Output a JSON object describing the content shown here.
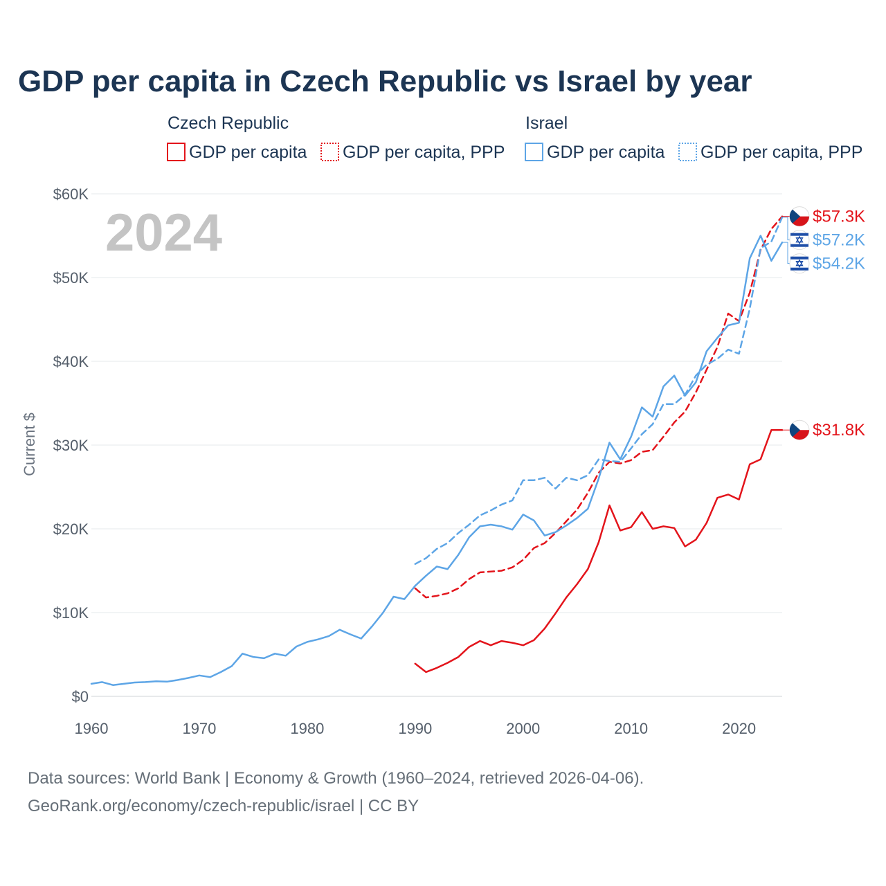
{
  "chart_data": {
    "type": "line",
    "title": "GDP per capita in Czech Republic vs Israel by year",
    "ylabel": "Current $",
    "xlabel": "",
    "xlim": [
      1960,
      2024
    ],
    "ylim": [
      0,
      60000
    ],
    "x_ticks": [
      1960,
      1970,
      1980,
      1990,
      2000,
      2010,
      2020
    ],
    "x_tick_labels": [
      "1960",
      "1970",
      "1980",
      "1990",
      "2000",
      "2010",
      "2020"
    ],
    "y_ticks": [
      0,
      10000,
      20000,
      30000,
      40000,
      50000,
      60000
    ],
    "y_tick_labels": [
      "$0",
      "$10K",
      "$20K",
      "$30K",
      "$40K",
      "$50K",
      "$60K"
    ],
    "grid": "horizontal",
    "year_watermark": "2024",
    "legend_groups": [
      {
        "country": "Czech Republic",
        "color": "#e3141b",
        "entries": [
          "GDP per capita",
          "GDP per capita, PPP"
        ]
      },
      {
        "country": "Israel",
        "color": "#5da5e6",
        "entries": [
          "GDP per capita",
          "GDP per capita, PPP"
        ]
      }
    ],
    "series": [
      {
        "name": "Czech Republic GDP per capita",
        "country": "Czech Republic",
        "color": "#e3141b",
        "dashed": false,
        "x": [
          1990,
          1991,
          1992,
          1993,
          1994,
          1995,
          1996,
          1997,
          1998,
          1999,
          2000,
          2001,
          2002,
          2003,
          2004,
          2005,
          2006,
          2007,
          2008,
          2009,
          2010,
          2011,
          2012,
          2013,
          2014,
          2015,
          2016,
          2017,
          2018,
          2019,
          2020,
          2021,
          2022,
          2023,
          2024
        ],
        "values": [
          3900,
          2900,
          3400,
          4000,
          4700,
          5900,
          6600,
          6100,
          6600,
          6400,
          6100,
          6700,
          8100,
          9900,
          11800,
          13400,
          15200,
          18400,
          22800,
          19800,
          20200,
          22000,
          20000,
          20300,
          20100,
          17900,
          18700,
          20700,
          23700,
          24100,
          23500,
          27700,
          28300,
          31800,
          31800
        ],
        "end_label": "$31.8K"
      },
      {
        "name": "Czech Republic GDP per capita, PPP",
        "country": "Czech Republic",
        "color": "#e3141b",
        "dashed": true,
        "x": [
          1990,
          1991,
          1992,
          1993,
          1994,
          1995,
          1996,
          1997,
          1998,
          1999,
          2000,
          2001,
          2002,
          2003,
          2004,
          2005,
          2006,
          2007,
          2008,
          2009,
          2010,
          2011,
          2012,
          2013,
          2014,
          2015,
          2016,
          2017,
          2018,
          2019,
          2020,
          2021,
          2022,
          2023,
          2024
        ],
        "values": [
          12900,
          11800,
          12000,
          12300,
          12900,
          14000,
          14800,
          14900,
          15000,
          15400,
          16300,
          17700,
          18300,
          19500,
          20900,
          22300,
          24300,
          26700,
          28000,
          27800,
          28200,
          29200,
          29400,
          31000,
          32700,
          34000,
          36300,
          39000,
          41700,
          45700,
          44800,
          48200,
          53300,
          55800,
          57300
        ],
        "end_label": "$57.3K"
      },
      {
        "name": "Israel GDP per capita",
        "country": "Israel",
        "color": "#5da5e6",
        "dashed": false,
        "x": [
          1960,
          1961,
          1962,
          1963,
          1964,
          1965,
          1966,
          1967,
          1968,
          1969,
          1970,
          1971,
          1972,
          1973,
          1974,
          1975,
          1976,
          1977,
          1978,
          1979,
          1980,
          1981,
          1982,
          1983,
          1984,
          1985,
          1986,
          1987,
          1988,
          1989,
          1990,
          1991,
          1992,
          1993,
          1994,
          1995,
          1996,
          1997,
          1998,
          1999,
          2000,
          2001,
          2002,
          2003,
          2004,
          2005,
          2006,
          2007,
          2008,
          2009,
          2010,
          2011,
          2012,
          2013,
          2014,
          2015,
          2016,
          2017,
          2018,
          2019,
          2020,
          2021,
          2022,
          2023,
          2024
        ],
        "values": [
          1500,
          1700,
          1350,
          1500,
          1650,
          1700,
          1800,
          1750,
          1950,
          2200,
          2500,
          2300,
          2900,
          3600,
          5100,
          4700,
          4550,
          5100,
          4850,
          5950,
          6500,
          6800,
          7200,
          7950,
          7400,
          6900,
          8350,
          9950,
          11900,
          11600,
          13200,
          14400,
          15500,
          15200,
          16900,
          19000,
          20300,
          20500,
          20300,
          19900,
          21700,
          21000,
          19200,
          19600,
          20400,
          21300,
          22400,
          26000,
          30300,
          28300,
          31000,
          34500,
          33400,
          37000,
          38300,
          35900,
          37500,
          41200,
          42800,
          44300,
          44600,
          52300,
          55000,
          52000,
          54200
        ],
        "end_label": "$54.2K"
      },
      {
        "name": "Israel GDP per capita, PPP",
        "country": "Israel",
        "color": "#5da5e6",
        "dashed": true,
        "x": [
          1990,
          1991,
          1992,
          1993,
          1994,
          1995,
          1996,
          1997,
          1998,
          1999,
          2000,
          2001,
          2002,
          2003,
          2004,
          2005,
          2006,
          2007,
          2008,
          2009,
          2010,
          2011,
          2012,
          2013,
          2014,
          2015,
          2016,
          2017,
          2018,
          2019,
          2020,
          2021,
          2022,
          2023,
          2024
        ],
        "values": [
          15800,
          16500,
          17600,
          18300,
          19500,
          20500,
          21600,
          22200,
          22900,
          23400,
          25800,
          25800,
          26100,
          24800,
          26100,
          25800,
          26400,
          28300,
          28100,
          28000,
          29600,
          31300,
          32500,
          34900,
          34900,
          36000,
          38300,
          39600,
          40300,
          41400,
          40900,
          46300,
          53500,
          54300,
          57200
        ],
        "end_label": "$57.2K"
      }
    ]
  },
  "source": {
    "line1": "Data sources: World Bank | Economy & Growth (1960–2024, retrieved 2026-04-06).",
    "line2": "GeoRank.org/economy/czech-republic/israel | CC BY"
  }
}
